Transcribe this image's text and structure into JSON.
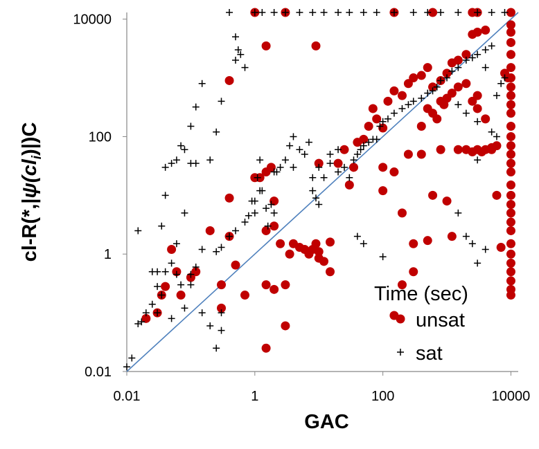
{
  "chart_data": {
    "type": "scatter",
    "xlabel": "GAC",
    "ylabel_parts": [
      "cl-R(*,|",
      "ψ",
      "(cl",
      "i",
      ")|)C"
    ],
    "x_scale": "log",
    "y_scale": "log",
    "xlim": [
      0.01,
      13000
    ],
    "ylim": [
      0.01,
      13000
    ],
    "x_ticks": [
      "0.01",
      "1",
      "100",
      "10000"
    ],
    "y_ticks": [
      "0.01",
      "1",
      "100",
      "10000"
    ],
    "x_tick_values": [
      0.01,
      1,
      100,
      10000
    ],
    "y_tick_values": [
      0.01,
      1,
      100,
      10000
    ],
    "grid": false,
    "diagonal": true,
    "legend": {
      "title": "Time (sec)",
      "placement": "bottom-right",
      "entries": [
        "unsat",
        "sat"
      ]
    },
    "colors": {
      "unsat": "#c00000",
      "sat": "#000000",
      "diagonal": "#4f81bd"
    },
    "series": [
      {
        "name": "unsat",
        "marker": "circle",
        "points": [
          [
            1,
            13000
          ],
          [
            3,
            13000
          ],
          [
            150,
            13000
          ],
          [
            600,
            13000
          ],
          [
            2500,
            13000
          ],
          [
            3000,
            13000
          ],
          [
            10000,
            13000
          ],
          [
            10000,
            8000
          ],
          [
            10000,
            6000
          ],
          [
            10000,
            4000
          ],
          [
            10000,
            2500
          ],
          [
            10000,
            1500
          ],
          [
            10000,
            1000
          ],
          [
            10000,
            700
          ],
          [
            10000,
            500
          ],
          [
            10000,
            350
          ],
          [
            10000,
            250
          ],
          [
            10000,
            150
          ],
          [
            10000,
            100
          ],
          [
            10000,
            70
          ],
          [
            10000,
            50
          ],
          [
            10000,
            35
          ],
          [
            10000,
            25
          ],
          [
            10000,
            15
          ],
          [
            10000,
            10
          ],
          [
            10000,
            7
          ],
          [
            10000,
            5
          ],
          [
            10000,
            3.5
          ],
          [
            10000,
            2.5
          ],
          [
            10000,
            1.5
          ],
          [
            10000,
            1
          ],
          [
            10000,
            0.7
          ],
          [
            10000,
            0.5
          ],
          [
            10000,
            0.35
          ],
          [
            10000,
            0.25
          ],
          [
            10000,
            0.2
          ],
          [
            0.02,
            0.08
          ],
          [
            0.03,
            0.1
          ],
          [
            0.035,
            0.2
          ],
          [
            0.04,
            0.28
          ],
          [
            0.05,
            1.2
          ],
          [
            0.06,
            0.5
          ],
          [
            0.07,
            0.2
          ],
          [
            0.1,
            0.4
          ],
          [
            0.12,
            0.5
          ],
          [
            0.2,
            2.5
          ],
          [
            0.3,
            0.12
          ],
          [
            0.3,
            0.3
          ],
          [
            0.4,
            900
          ],
          [
            0.4,
            2
          ],
          [
            0.4,
            9
          ],
          [
            0.5,
            0.65
          ],
          [
            0.7,
            0.2
          ],
          [
            1,
            20
          ],
          [
            1.2,
            20
          ],
          [
            1.5,
            2.5
          ],
          [
            1.5,
            25
          ],
          [
            1.5,
            3500
          ],
          [
            1.5,
            0.3
          ],
          [
            1.5,
            0.025
          ],
          [
            1.8,
            30
          ],
          [
            2,
            3
          ],
          [
            2,
            0.25
          ],
          [
            2,
            8
          ],
          [
            2.5,
            1.5
          ],
          [
            3,
            0.3
          ],
          [
            3,
            0.06
          ],
          [
            3.5,
            1
          ],
          [
            4,
            1.5
          ],
          [
            5,
            1.3
          ],
          [
            6,
            1.2
          ],
          [
            7,
            1
          ],
          [
            8,
            1.2
          ],
          [
            9,
            1.5
          ],
          [
            10,
            0.85
          ],
          [
            10,
            1.1
          ],
          [
            12,
            0.75
          ],
          [
            15,
            1.6
          ],
          [
            9,
            3500
          ],
          [
            10,
            35
          ],
          [
            15,
            0.5
          ],
          [
            20,
            35
          ],
          [
            25,
            60
          ],
          [
            30,
            15
          ],
          [
            35,
            30
          ],
          [
            40,
            80
          ],
          [
            50,
            90
          ],
          [
            60,
            150
          ],
          [
            70,
            300
          ],
          [
            80,
            200
          ],
          [
            100,
            140
          ],
          [
            120,
            400
          ],
          [
            150,
            600
          ],
          [
            200,
            500
          ],
          [
            250,
            800
          ],
          [
            300,
            1000
          ],
          [
            400,
            1100
          ],
          [
            500,
            1500
          ],
          [
            600,
            700
          ],
          [
            800,
            900
          ],
          [
            1000,
            1200
          ],
          [
            1200,
            1800
          ],
          [
            1500,
            2000
          ],
          [
            2000,
            2500
          ],
          [
            2500,
            5500
          ],
          [
            3000,
            6000
          ],
          [
            4000,
            6500
          ],
          [
            3000,
            500
          ],
          [
            100,
            12
          ],
          [
            150,
            25
          ],
          [
            200,
            5
          ],
          [
            250,
            50
          ],
          [
            300,
            1.5
          ],
          [
            400,
            50
          ],
          [
            500,
            1.7
          ],
          [
            600,
            10
          ],
          [
            800,
            60
          ],
          [
            1000,
            8
          ],
          [
            1200,
            2
          ],
          [
            1500,
            60
          ],
          [
            2000,
            60
          ],
          [
            2500,
            55
          ],
          [
            3000,
            60
          ],
          [
            3500,
            55
          ],
          [
            4000,
            60
          ],
          [
            5000,
            65
          ],
          [
            6000,
            10
          ],
          [
            7000,
            1.3
          ],
          [
            8000,
            1200
          ],
          [
            9000,
            1000
          ],
          [
            100,
            30
          ],
          [
            150,
            0.09
          ],
          [
            200,
            0.3
          ],
          [
            300,
            0.5
          ],
          [
            400,
            150
          ],
          [
            500,
            300
          ],
          [
            600,
            250
          ],
          [
            700,
            200
          ],
          [
            800,
            400
          ],
          [
            900,
            350
          ],
          [
            1000,
            450
          ],
          [
            1200,
            550
          ],
          [
            1500,
            700
          ],
          [
            2000,
            800
          ],
          [
            2500,
            400
          ],
          [
            3000,
            300
          ],
          [
            4000,
            200
          ],
          [
            5000,
            60
          ],
          [
            6000,
            70
          ]
        ]
      },
      {
        "name": "sat",
        "marker": "plus",
        "points": [
          [
            0.01,
            0.012
          ],
          [
            0.012,
            0.017
          ],
          [
            0.015,
            0.065
          ],
          [
            0.017,
            0.07
          ],
          [
            0.02,
            0.1
          ],
          [
            0.025,
            0.14
          ],
          [
            0.015,
            2.5
          ],
          [
            0.03,
            0.5
          ],
          [
            0.03,
            0.28
          ],
          [
            0.035,
            0.2
          ],
          [
            0.04,
            0.5
          ],
          [
            0.05,
            0.08
          ],
          [
            0.05,
            0.7
          ],
          [
            0.06,
            0.45
          ],
          [
            0.07,
            0.3
          ],
          [
            0.08,
            0.12
          ],
          [
            0.1,
            0.45
          ],
          [
            0.12,
            0.6
          ],
          [
            0.15,
            1.2
          ],
          [
            0.15,
            0.1
          ],
          [
            0.2,
            0.06
          ],
          [
            0.25,
            0.025
          ],
          [
            0.3,
            0.05
          ],
          [
            0.3,
            0.1
          ],
          [
            0.025,
            0.5
          ],
          [
            0.035,
            3
          ],
          [
            0.03,
            0.1
          ],
          [
            0.04,
            10
          ],
          [
            0.06,
            1.5
          ],
          [
            0.08,
            5
          ],
          [
            0.1,
            0.3
          ],
          [
            0.04,
            30
          ],
          [
            0.05,
            35
          ],
          [
            0.06,
            40
          ],
          [
            0.07,
            70
          ],
          [
            0.08,
            60
          ],
          [
            0.1,
            35
          ],
          [
            0.12,
            35
          ],
          [
            0.1,
            150
          ],
          [
            0.12,
            320
          ],
          [
            0.15,
            800
          ],
          [
            0.2,
            40
          ],
          [
            0.25,
            120
          ],
          [
            0.3,
            400
          ],
          [
            0.4,
            13000
          ],
          [
            0.5,
            5000
          ],
          [
            0.55,
            3000
          ],
          [
            0.6,
            2500
          ],
          [
            0.5,
            2000
          ],
          [
            0.7,
            1500
          ],
          [
            0.9,
            8
          ],
          [
            1,
            5
          ],
          [
            1.1,
            20
          ],
          [
            1.2,
            40
          ],
          [
            1.3,
            12
          ],
          [
            1.5,
            6
          ],
          [
            1.6,
            3
          ],
          [
            1.8,
            7
          ],
          [
            2,
            5
          ],
          [
            2.2,
            25
          ],
          [
            2.5,
            30
          ],
          [
            3,
            40
          ],
          [
            3.5,
            70
          ],
          [
            4,
            100
          ],
          [
            5,
            60
          ],
          [
            6,
            50
          ],
          [
            7,
            80
          ],
          [
            8,
            12
          ],
          [
            9,
            9
          ],
          [
            10,
            7
          ],
          [
            12,
            20
          ],
          [
            15,
            35
          ],
          [
            20,
            25
          ],
          [
            25,
            30
          ],
          [
            30,
            20
          ],
          [
            35,
            40
          ],
          [
            40,
            50
          ],
          [
            45,
            60
          ],
          [
            50,
            70
          ],
          [
            60,
            80
          ],
          [
            70,
            90
          ],
          [
            80,
            90
          ],
          [
            90,
            150
          ],
          [
            100,
            180
          ],
          [
            120,
            200
          ],
          [
            150,
            250
          ],
          [
            200,
            300
          ],
          [
            250,
            350
          ],
          [
            300,
            400
          ],
          [
            400,
            450
          ],
          [
            500,
            550
          ],
          [
            600,
            600
          ],
          [
            700,
            700
          ],
          [
            800,
            900
          ],
          [
            1000,
            1000
          ],
          [
            1200,
            1300
          ],
          [
            1500,
            1500
          ],
          [
            2000,
            2000
          ],
          [
            2500,
            2200
          ],
          [
            3000,
            2500
          ],
          [
            4000,
            3000
          ],
          [
            5000,
            3500
          ],
          [
            1,
            13000
          ],
          [
            1.3,
            13000
          ],
          [
            2,
            13000
          ],
          [
            3,
            13000
          ],
          [
            5,
            13000
          ],
          [
            8,
            13000
          ],
          [
            12,
            13000
          ],
          [
            20,
            13000
          ],
          [
            30,
            13000
          ],
          [
            50,
            13000
          ],
          [
            80,
            13000
          ],
          [
            150,
            13000
          ],
          [
            300,
            13000
          ],
          [
            500,
            13000
          ],
          [
            800,
            13000
          ],
          [
            1500,
            13000
          ],
          [
            3000,
            13000
          ],
          [
            5000,
            13000
          ],
          [
            8000,
            13000
          ],
          [
            0.25,
            1.1
          ],
          [
            0.3,
            1.3
          ],
          [
            0.4,
            2
          ],
          [
            0.5,
            2.5
          ],
          [
            0.7,
            3.5
          ],
          [
            0.8,
            4.5
          ],
          [
            1,
            8
          ],
          [
            1.2,
            12
          ],
          [
            2,
            25
          ],
          [
            4,
            30
          ],
          [
            8,
            20
          ],
          [
            10,
            30
          ],
          [
            15,
            50
          ],
          [
            20,
            60
          ],
          [
            40,
            2
          ],
          [
            50,
            1.5
          ],
          [
            100,
            0.9
          ],
          [
            1500,
            5
          ],
          [
            2000,
            2
          ],
          [
            2500,
            1.5
          ],
          [
            3000,
            0.7
          ],
          [
            4000,
            1.2
          ],
          [
            6000,
            500
          ],
          [
            7000,
            800
          ],
          [
            8000,
            1000
          ],
          [
            4000,
            1500
          ],
          [
            1500,
            350
          ],
          [
            2000,
            250
          ],
          [
            3000,
            180
          ],
          [
            5000,
            120
          ],
          [
            6000,
            100
          ],
          [
            3000,
            40
          ]
        ]
      }
    ]
  }
}
